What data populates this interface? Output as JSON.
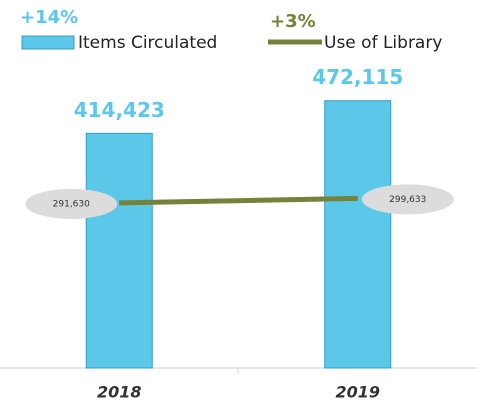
{
  "chart_data": {
    "type": "bar",
    "categories": [
      "2018",
      "2019"
    ],
    "series": [
      {
        "name": "Items Circulated",
        "type": "bar",
        "color": "#5bc8ea",
        "values": [
          414423,
          472115
        ],
        "value_labels": [
          "414,423",
          "472,115"
        ]
      },
      {
        "name": "Use of Library",
        "type": "line",
        "color": "#76813a",
        "values": [
          291630,
          299633
        ],
        "value_labels": [
          "291,630",
          "299,633"
        ]
      }
    ],
    "annotations": [
      {
        "text": "+14%",
        "color": "#5bc8ea"
      },
      {
        "text": "+3%",
        "color": "#76813a"
      }
    ],
    "ylim": [
      0,
      650000
    ]
  }
}
